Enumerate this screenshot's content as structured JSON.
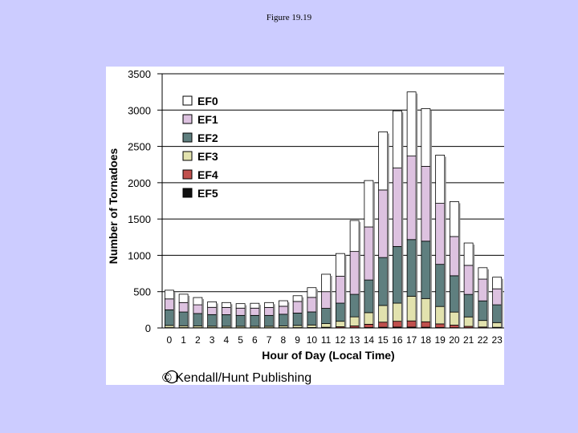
{
  "page": {
    "title": "Figure 19.19"
  },
  "chart_data": {
    "type": "bar",
    "stacked": true,
    "xlabel": "Hour of Day (Local Time)",
    "ylabel": "Number of Tornadoes",
    "ylim": [
      0,
      3500
    ],
    "yticks": [
      "0",
      "500",
      "1000",
      "1500",
      "2000",
      "2500",
      "3000",
      "3500"
    ],
    "grid": "horizontal",
    "legend_position": "top-left",
    "categories": [
      "0",
      "1",
      "2",
      "3",
      "4",
      "5",
      "6",
      "7",
      "8",
      "9",
      "10",
      "11",
      "12",
      "13",
      "14",
      "15",
      "16",
      "17",
      "18",
      "19",
      "20",
      "21",
      "22",
      "23"
    ],
    "series": [
      {
        "name": "EF5",
        "color": "#111111",
        "values": [
          0,
          0,
          0,
          0,
          0,
          0,
          0,
          0,
          0,
          0,
          0,
          0,
          2,
          3,
          6,
          10,
          12,
          12,
          10,
          6,
          4,
          2,
          1,
          1
        ]
      },
      {
        "name": "EF4",
        "color": "#c0504d",
        "values": [
          5,
          5,
          4,
          4,
          3,
          3,
          3,
          3,
          4,
          5,
          6,
          10,
          15,
          25,
          45,
          70,
          80,
          85,
          75,
          50,
          35,
          20,
          12,
          8
        ]
      },
      {
        "name": "EF3",
        "color": "#e2e2ae",
        "values": [
          30,
          25,
          25,
          20,
          20,
          20,
          20,
          20,
          25,
          30,
          35,
          50,
          75,
          125,
          160,
          230,
          250,
          340,
          320,
          240,
          180,
          130,
          90,
          65
        ]
      },
      {
        "name": "EF2",
        "color": "#5f7f7f",
        "values": [
          215,
          190,
          170,
          160,
          160,
          150,
          150,
          150,
          160,
          170,
          180,
          210,
          250,
          310,
          450,
          660,
          780,
          780,
          790,
          580,
          500,
          310,
          270,
          245
        ]
      },
      {
        "name": "EF1",
        "color": "#ddc2e0",
        "values": [
          150,
          130,
          120,
          100,
          100,
          100,
          100,
          110,
          110,
          160,
          200,
          230,
          370,
          590,
          730,
          930,
          1080,
          1150,
          1030,
          840,
          540,
          400,
          300,
          220
        ]
      },
      {
        "name": "EF0",
        "color": "#ffffff",
        "values": [
          120,
          115,
          100,
          76,
          67,
          62,
          67,
          67,
          76,
          79,
          134,
          240,
          313,
          427,
          639,
          800,
          788,
          883,
          795,
          664,
          481,
          308,
          157,
          160
        ]
      }
    ],
    "legend_order": [
      "EF0",
      "EF1",
      "EF2",
      "EF3",
      "EF4",
      "EF5"
    ],
    "copyright": "© Kendall/Hunt Publishing"
  }
}
